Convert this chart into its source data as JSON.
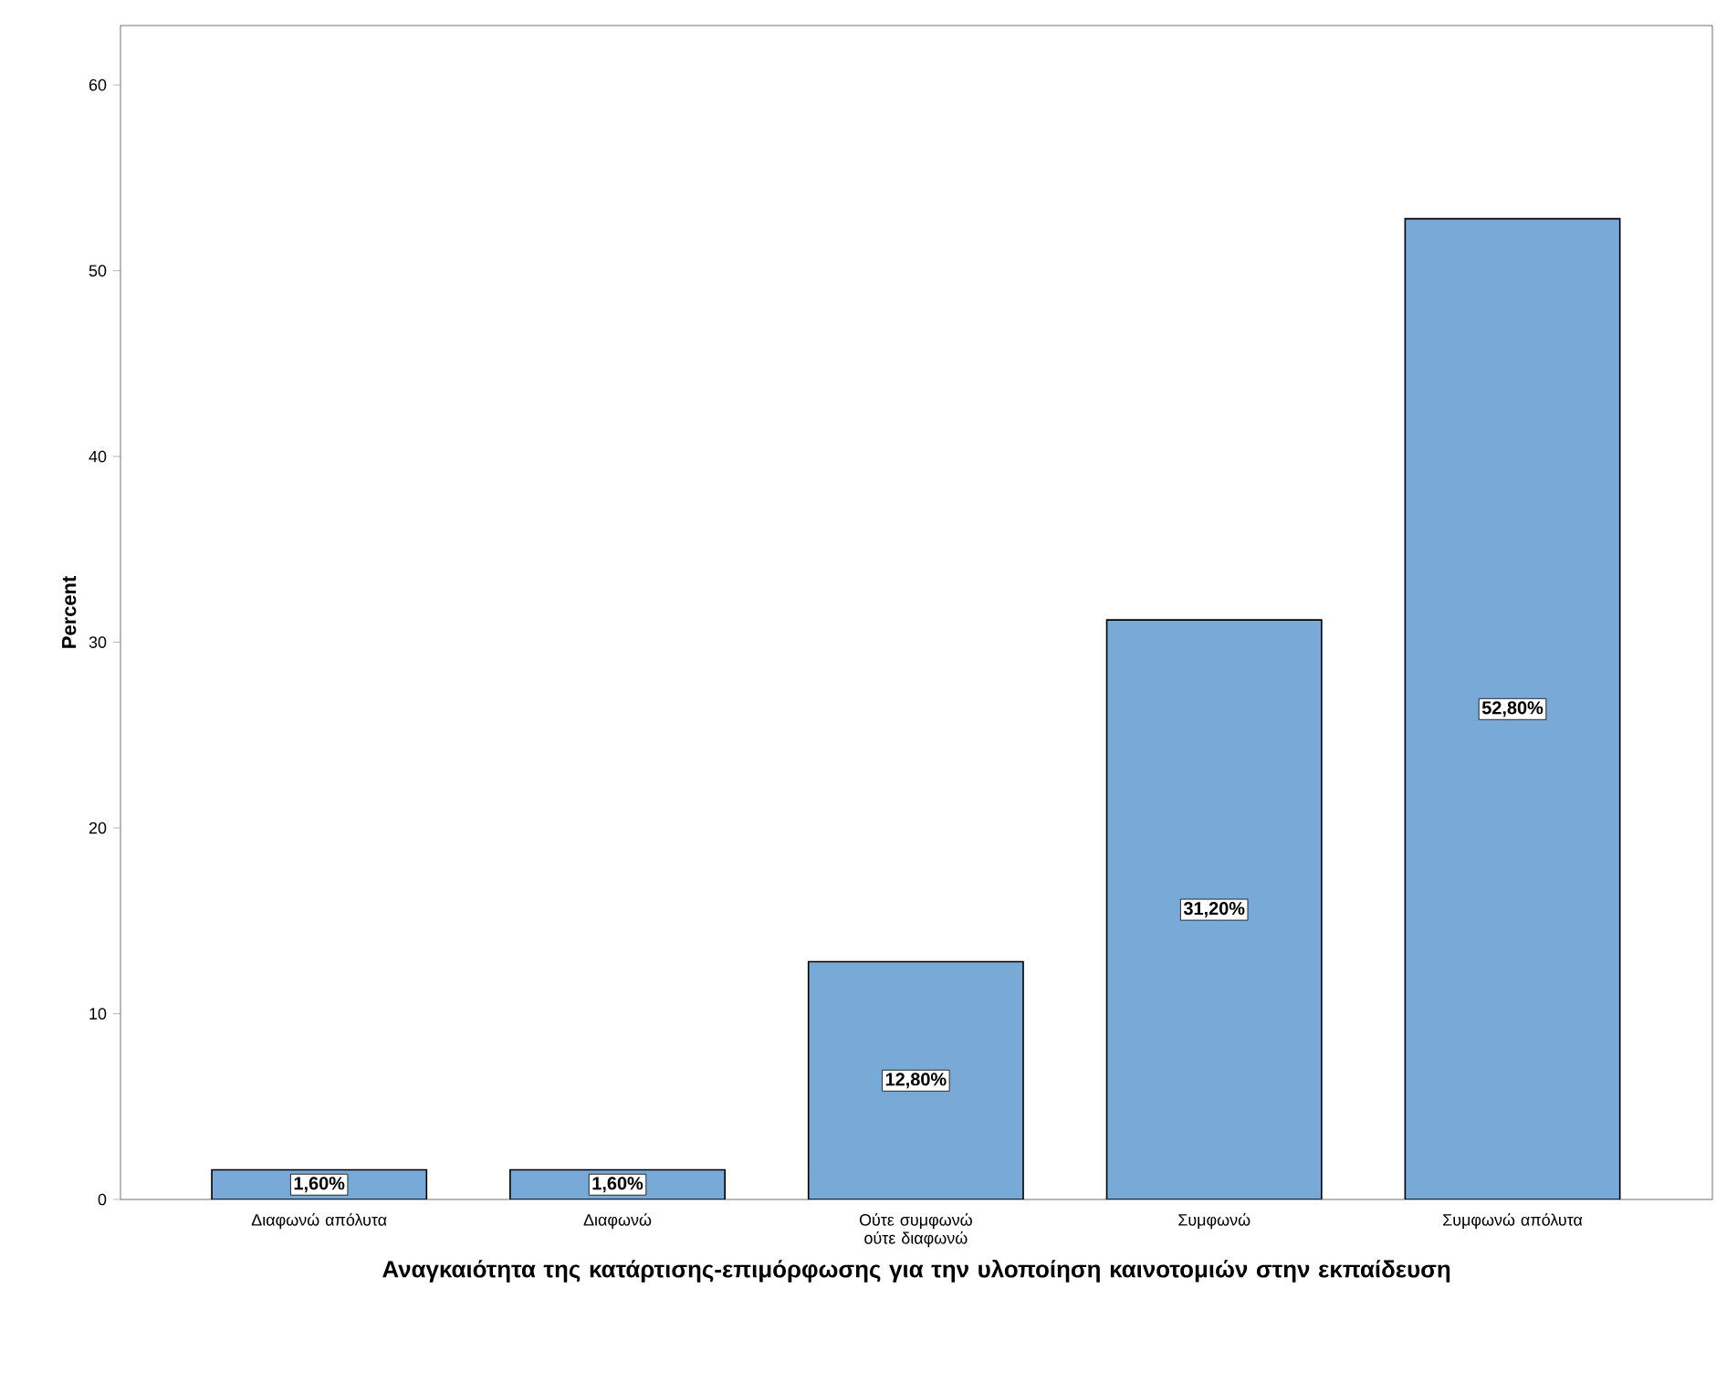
{
  "chart_data": {
    "type": "bar",
    "xlabel": "Αναγκαιότητα της κατάρτισης-επιμόρφωσης για την υλοποίηση καινοτομιών στην εκπαίδευση",
    "ylabel": "Percent",
    "categories": [
      "Διαφωνώ απόλυτα",
      "Διαφωνώ",
      "Ούτε συμφωνώ ούτε διαφωνώ",
      "Συμφωνώ",
      "Συμφωνώ απόλυτα"
    ],
    "values": [
      1.6,
      1.6,
      12.8,
      31.2,
      52.8
    ],
    "value_labels": [
      "1,60%",
      "1,60%",
      "12,80%",
      "31,20%",
      "52,80%"
    ],
    "color": "#79a9d7",
    "ylim": [
      0,
      63.2
    ],
    "yticks": [
      0,
      10,
      20,
      30,
      40,
      50,
      60
    ]
  }
}
